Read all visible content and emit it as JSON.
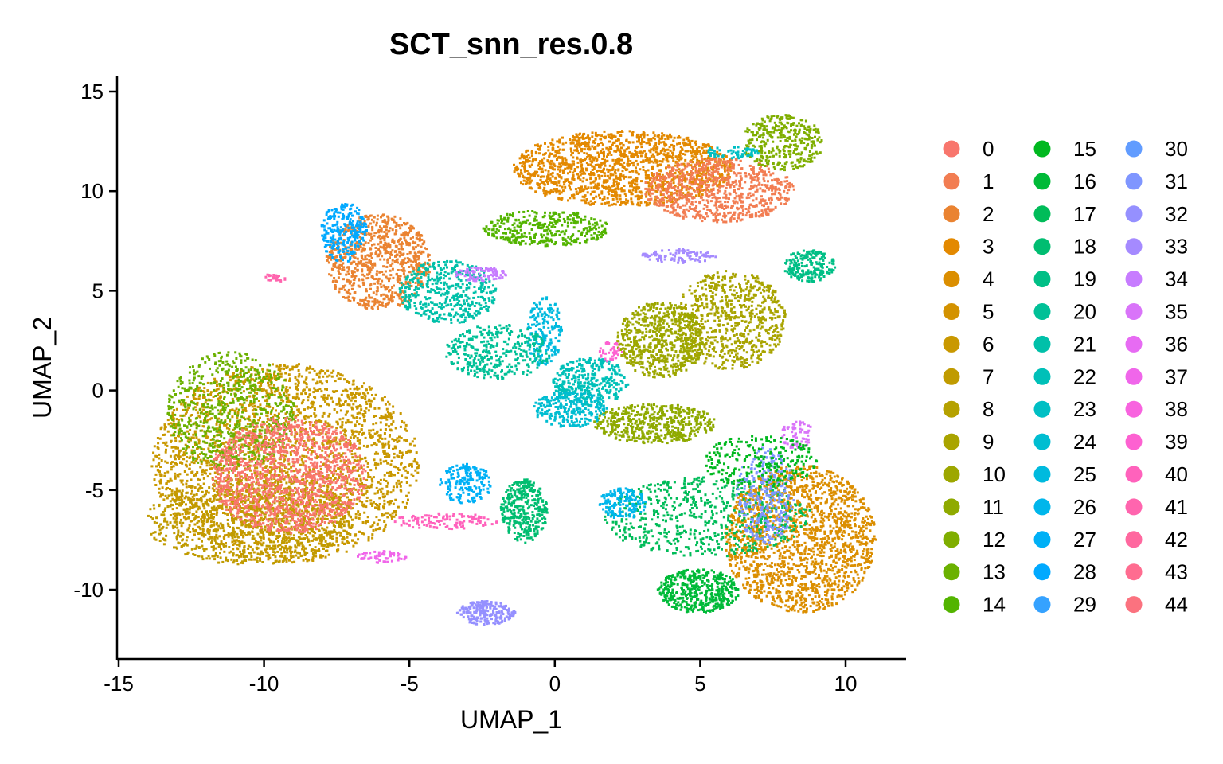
{
  "chart_data": {
    "type": "scatter",
    "title": "SCT_snn_res.0.8",
    "xlabel": "UMAP_1",
    "ylabel": "UMAP_2",
    "xlim": [
      -15.2,
      12
    ],
    "ylim": [
      -13.5,
      15.7
    ],
    "xticks": [
      -15,
      -10,
      -5,
      0,
      5,
      10
    ],
    "yticks": [
      15,
      10,
      5,
      0,
      -5,
      -10
    ],
    "grid": false,
    "legend_placement": "right",
    "legend_columns": 3,
    "legend_title": "",
    "clusters": [
      {
        "name": "0",
        "color": "#F8766D"
      },
      {
        "name": "1",
        "color": "#F27D52"
      },
      {
        "name": "2",
        "color": "#EA8331"
      },
      {
        "name": "3",
        "color": "#E38900"
      },
      {
        "name": "4",
        "color": "#DB8E00"
      },
      {
        "name": "5",
        "color": "#D39200"
      },
      {
        "name": "6",
        "color": "#C99800"
      },
      {
        "name": "7",
        "color": "#C09B00"
      },
      {
        "name": "8",
        "color": "#B5A100"
      },
      {
        "name": "9",
        "color": "#A9A400"
      },
      {
        "name": "10",
        "color": "#9DA700"
      },
      {
        "name": "11",
        "color": "#8FAA00"
      },
      {
        "name": "12",
        "color": "#7FAE00"
      },
      {
        "name": "13",
        "color": "#6BB100"
      },
      {
        "name": "14",
        "color": "#53B400"
      },
      {
        "name": "15",
        "color": "#00B81F"
      },
      {
        "name": "16",
        "color": "#00BA38"
      },
      {
        "name": "17",
        "color": "#00BC59"
      },
      {
        "name": "18",
        "color": "#00BD71"
      },
      {
        "name": "19",
        "color": "#00BF86"
      },
      {
        "name": "20",
        "color": "#00C097"
      },
      {
        "name": "21",
        "color": "#00C0A9"
      },
      {
        "name": "22",
        "color": "#00C0B8"
      },
      {
        "name": "23",
        "color": "#00BFC4"
      },
      {
        "name": "24",
        "color": "#00BDD1"
      },
      {
        "name": "25",
        "color": "#00BADE"
      },
      {
        "name": "26",
        "color": "#00B6EB"
      },
      {
        "name": "27",
        "color": "#00B0F6"
      },
      {
        "name": "28",
        "color": "#00A9FF"
      },
      {
        "name": "29",
        "color": "#35A2FF"
      },
      {
        "name": "30",
        "color": "#619CFF"
      },
      {
        "name": "31",
        "color": "#7F96FF"
      },
      {
        "name": "32",
        "color": "#9590FF"
      },
      {
        "name": "33",
        "color": "#A58AFF"
      },
      {
        "name": "34",
        "color": "#C77CFF"
      },
      {
        "name": "35",
        "color": "#D974F9"
      },
      {
        "name": "36",
        "color": "#E76BF3"
      },
      {
        "name": "37",
        "color": "#F066EA"
      },
      {
        "name": "38",
        "color": "#F863DF"
      },
      {
        "name": "39",
        "color": "#FD61D1"
      },
      {
        "name": "40",
        "color": "#FF62BC"
      },
      {
        "name": "41",
        "color": "#FF65AE"
      },
      {
        "name": "42",
        "color": "#FF689F"
      },
      {
        "name": "43",
        "color": "#FF6C90"
      },
      {
        "name": "44",
        "color": "#FB727F"
      }
    ],
    "regions": [
      {
        "cluster": 6,
        "cx": -9.3,
        "cy": -3.6,
        "rx": 4.6,
        "ry": 5.0,
        "n": 2600
      },
      {
        "cluster": 7,
        "cx": -10.5,
        "cy": -6.5,
        "rx": 3.6,
        "ry": 2.2,
        "n": 900
      },
      {
        "cluster": 13,
        "cx": -11.2,
        "cy": -1.0,
        "rx": 2.2,
        "ry": 3.0,
        "n": 700
      },
      {
        "cluster": 0,
        "cx": -9.2,
        "cy": -4.2,
        "rx": 2.7,
        "ry": 2.9,
        "n": 1300
      },
      {
        "cluster": 2,
        "cx": -6.1,
        "cy": 6.5,
        "rx": 1.8,
        "ry": 2.4,
        "n": 800
      },
      {
        "cluster": 28,
        "cx": -7.3,
        "cy": 8.0,
        "rx": 0.8,
        "ry": 1.5,
        "n": 250
      },
      {
        "cluster": 21,
        "cx": -3.7,
        "cy": 5.0,
        "rx": 1.7,
        "ry": 1.6,
        "n": 450
      },
      {
        "cluster": 34,
        "cx": -2.6,
        "cy": 5.9,
        "rx": 0.9,
        "ry": 0.35,
        "n": 90
      },
      {
        "cluster": 41,
        "cx": -9.7,
        "cy": 5.7,
        "rx": 0.5,
        "ry": 0.2,
        "n": 25
      },
      {
        "cluster": 3,
        "cx": 2.3,
        "cy": 11.2,
        "rx": 3.8,
        "ry": 1.9,
        "n": 1500
      },
      {
        "cluster": 1,
        "cx": 5.6,
        "cy": 10.1,
        "rx": 2.6,
        "ry": 1.6,
        "n": 800
      },
      {
        "cluster": 12,
        "cx": 7.8,
        "cy": 12.5,
        "rx": 1.4,
        "ry": 1.4,
        "n": 350
      },
      {
        "cluster": 14,
        "cx": -0.3,
        "cy": 8.2,
        "rx": 2.2,
        "ry": 0.9,
        "n": 350
      },
      {
        "cluster": 33,
        "cx": 4.2,
        "cy": 6.8,
        "rx": 1.3,
        "ry": 0.35,
        "n": 100
      },
      {
        "cluster": 9,
        "cx": 6.0,
        "cy": 3.6,
        "rx": 1.9,
        "ry": 2.5,
        "n": 700
      },
      {
        "cluster": 10,
        "cx": 3.6,
        "cy": 2.6,
        "rx": 1.5,
        "ry": 1.9,
        "n": 650
      },
      {
        "cluster": 22,
        "cx": 1.2,
        "cy": 0.5,
        "rx": 1.3,
        "ry": 1.2,
        "n": 350
      },
      {
        "cluster": 11,
        "cx": 3.4,
        "cy": -1.6,
        "rx": 2.1,
        "ry": 1.0,
        "n": 500
      },
      {
        "cluster": 25,
        "cx": -0.4,
        "cy": 3.0,
        "rx": 0.6,
        "ry": 1.8,
        "n": 180
      },
      {
        "cluster": 20,
        "cx": -2.0,
        "cy": 2.0,
        "rx": 1.8,
        "ry": 1.4,
        "n": 350
      },
      {
        "cluster": 24,
        "cx": 0.5,
        "cy": -0.9,
        "rx": 1.3,
        "ry": 0.9,
        "n": 250
      },
      {
        "cluster": 39,
        "cx": 1.9,
        "cy": 2.0,
        "rx": 0.4,
        "ry": 0.5,
        "n": 40
      },
      {
        "cluster": 4,
        "cx": 8.4,
        "cy": -7.4,
        "rx": 2.6,
        "ry": 3.7,
        "n": 1700
      },
      {
        "cluster": 16,
        "cx": 4.9,
        "cy": -10.0,
        "rx": 1.4,
        "ry": 1.1,
        "n": 450
      },
      {
        "cluster": 17,
        "cx": 5.2,
        "cy": -6.3,
        "rx": 3.6,
        "ry": 2.0,
        "n": 600
      },
      {
        "cluster": 31,
        "cx": 7.2,
        "cy": -5.2,
        "rx": 1.0,
        "ry": 2.4,
        "n": 300
      },
      {
        "cluster": 35,
        "cx": 8.3,
        "cy": -2.2,
        "rx": 0.6,
        "ry": 0.7,
        "n": 70
      },
      {
        "cluster": 15,
        "cx": 7.0,
        "cy": -3.5,
        "rx": 2.0,
        "ry": 1.3,
        "n": 250
      },
      {
        "cluster": 18,
        "cx": -1.1,
        "cy": -6.0,
        "rx": 0.8,
        "ry": 1.6,
        "n": 350
      },
      {
        "cluster": 27,
        "cx": -3.1,
        "cy": -4.6,
        "rx": 0.9,
        "ry": 1.0,
        "n": 180
      },
      {
        "cluster": 26,
        "cx": 2.3,
        "cy": -5.6,
        "rx": 0.8,
        "ry": 0.8,
        "n": 150
      },
      {
        "cluster": 37,
        "cx": -6.0,
        "cy": -8.3,
        "rx": 0.9,
        "ry": 0.3,
        "n": 60
      },
      {
        "cluster": 40,
        "cx": -3.8,
        "cy": -6.5,
        "rx": 1.8,
        "ry": 0.4,
        "n": 120
      },
      {
        "cluster": 32,
        "cx": -2.4,
        "cy": -11.1,
        "rx": 1.0,
        "ry": 0.6,
        "n": 220
      },
      {
        "cluster": 19,
        "cx": 8.7,
        "cy": 6.3,
        "rx": 0.9,
        "ry": 0.8,
        "n": 200
      },
      {
        "cluster": 23,
        "cx": 6.0,
        "cy": 12.0,
        "rx": 1.0,
        "ry": 0.3,
        "n": 60
      }
    ]
  }
}
